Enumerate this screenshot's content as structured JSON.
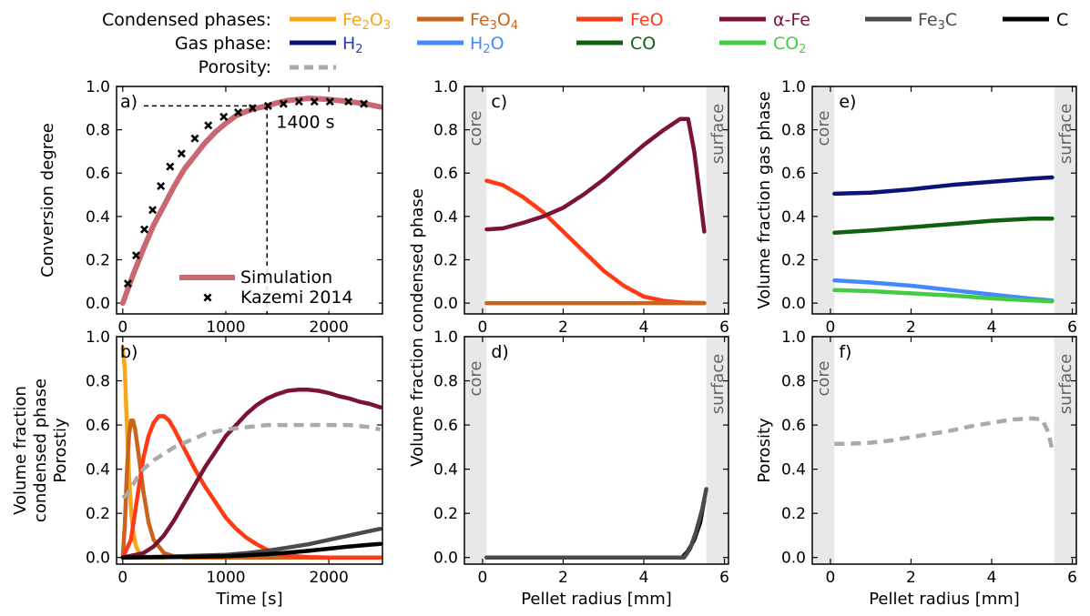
{
  "legend": {
    "condensed_label": "Condensed phases:",
    "gas_label": "Gas phase:",
    "porosity_label": "Porosity:"
  },
  "colors": {
    "Fe2O3": "#f8a51c",
    "Fe3O4": "#c8641e",
    "FeO": "#ff3a14",
    "a-Fe": "#7a1430",
    "Fe3C": "#4a4a4a",
    "C": "#000000",
    "H2": "#0a1478",
    "H2O": "#4488ff",
    "CO": "#106010",
    "CO2": "#44cc44",
    "porosity": "#aaaaaa",
    "simulation": "#c96870",
    "zone": "#e8e8e8"
  },
  "chart_data": [
    {
      "id": "a",
      "type": "line",
      "panel_label": "a)",
      "xlabel": "",
      "ylabel": "Conversion degree",
      "xlim": [
        -60,
        2520
      ],
      "ylim": [
        -0.05,
        1.0
      ],
      "xticks": [
        0,
        1000,
        2000
      ],
      "yticks": [
        0.0,
        0.2,
        0.4,
        0.6,
        0.8,
        1.0
      ],
      "annotation": "1400 s",
      "annotation_x": 1400,
      "annotation_y": 0.91,
      "series": [
        {
          "name": "Simulation",
          "color_key": "simulation",
          "x": [
            0,
            100,
            200,
            300,
            400,
            500,
            600,
            700,
            800,
            900,
            1000,
            1100,
            1200,
            1300,
            1400,
            1500,
            1600,
            1700,
            1800,
            1900,
            2000,
            2100,
            2200,
            2300,
            2400,
            2500
          ],
          "y": [
            0.0,
            0.13,
            0.25,
            0.36,
            0.45,
            0.54,
            0.62,
            0.68,
            0.74,
            0.79,
            0.83,
            0.865,
            0.885,
            0.9,
            0.91,
            0.925,
            0.935,
            0.94,
            0.945,
            0.943,
            0.94,
            0.935,
            0.93,
            0.923,
            0.915,
            0.905
          ]
        }
      ],
      "markers": {
        "name": "Kazemi 2014",
        "x": [
          50,
          130,
          210,
          290,
          370,
          460,
          570,
          700,
          830,
          980,
          1120,
          1260,
          1410,
          1560,
          1710,
          1860,
          2010,
          2190,
          2340
        ],
        "y": [
          0.09,
          0.22,
          0.34,
          0.43,
          0.54,
          0.63,
          0.69,
          0.76,
          0.82,
          0.86,
          0.88,
          0.9,
          0.91,
          0.92,
          0.93,
          0.93,
          0.93,
          0.93,
          0.92
        ]
      }
    },
    {
      "id": "b",
      "type": "line",
      "panel_label": "b)",
      "xlabel": "Time [s]",
      "ylabel": "Volume fraction condensed phase Porostiy",
      "xlim": [
        -60,
        2520
      ],
      "ylim": [
        -0.03,
        1.0
      ],
      "xticks": [
        0,
        1000,
        2000
      ],
      "yticks": [
        0.0,
        0.2,
        0.4,
        0.6,
        0.8,
        1.0
      ],
      "series": [
        {
          "name": "Fe2O3",
          "x": [
            0,
            20,
            40,
            60,
            80,
            100,
            130,
            160,
            200,
            260,
            400
          ],
          "y": [
            0.95,
            0.85,
            0.6,
            0.38,
            0.22,
            0.12,
            0.05,
            0.02,
            0.005,
            0.0,
            0.0
          ]
        },
        {
          "name": "Fe3O4",
          "x": [
            0,
            20,
            40,
            60,
            80,
            100,
            120,
            150,
            200,
            250,
            300,
            400,
            500,
            600,
            800,
            2500
          ],
          "y": [
            0.0,
            0.15,
            0.38,
            0.55,
            0.62,
            0.62,
            0.58,
            0.48,
            0.3,
            0.16,
            0.08,
            0.02,
            0.005,
            0.0,
            0.0,
            0.0
          ]
        },
        {
          "name": "FeO",
          "x": [
            0,
            80,
            150,
            200,
            250,
            300,
            350,
            400,
            450,
            500,
            600,
            700,
            800,
            900,
            1000,
            1100,
            1200,
            1300,
            1400,
            1500,
            1600,
            1700,
            1800,
            2000,
            2500
          ],
          "y": [
            0.0,
            0.08,
            0.3,
            0.45,
            0.55,
            0.61,
            0.64,
            0.64,
            0.62,
            0.58,
            0.49,
            0.4,
            0.32,
            0.25,
            0.18,
            0.13,
            0.09,
            0.06,
            0.035,
            0.02,
            0.01,
            0.005,
            0.002,
            0.0,
            0.0
          ]
        },
        {
          "name": "a-Fe",
          "x": [
            0,
            200,
            300,
            400,
            500,
            600,
            700,
            800,
            900,
            1000,
            1100,
            1200,
            1300,
            1400,
            1500,
            1600,
            1700,
            1800,
            1900,
            2000,
            2100,
            2200,
            2300,
            2400,
            2500
          ],
          "y": [
            0.0,
            0.02,
            0.05,
            0.1,
            0.17,
            0.25,
            0.33,
            0.41,
            0.48,
            0.55,
            0.6,
            0.65,
            0.69,
            0.72,
            0.74,
            0.755,
            0.76,
            0.76,
            0.755,
            0.745,
            0.73,
            0.72,
            0.705,
            0.695,
            0.68
          ]
        },
        {
          "name": "porosity",
          "dashed": true,
          "x": [
            0,
            50,
            100,
            150,
            200,
            300,
            400,
            500,
            600,
            700,
            800,
            900,
            1000,
            1200,
            1400,
            1600,
            1800,
            2000,
            2200,
            2400,
            2500
          ],
          "y": [
            0.27,
            0.29,
            0.33,
            0.37,
            0.4,
            0.44,
            0.47,
            0.5,
            0.52,
            0.54,
            0.56,
            0.57,
            0.58,
            0.59,
            0.6,
            0.6,
            0.6,
            0.6,
            0.6,
            0.59,
            0.58
          ]
        },
        {
          "name": "Fe3C",
          "x": [
            0,
            500,
            1000,
            1200,
            1400,
            1600,
            1800,
            2000,
            2200,
            2400,
            2500
          ],
          "y": [
            0.0,
            0.005,
            0.012,
            0.02,
            0.03,
            0.045,
            0.06,
            0.08,
            0.1,
            0.12,
            0.13
          ]
        },
        {
          "name": "C",
          "x": [
            0,
            500,
            1000,
            1200,
            1400,
            1600,
            1800,
            2000,
            2200,
            2400,
            2500
          ],
          "y": [
            0.0,
            0.002,
            0.006,
            0.01,
            0.015,
            0.022,
            0.03,
            0.04,
            0.05,
            0.058,
            0.062
          ]
        }
      ]
    },
    {
      "id": "c",
      "type": "line",
      "panel_label": "c)",
      "xlabel": "",
      "ylabel": "Volume fraction condensed phase",
      "xlim": [
        -0.45,
        6.1
      ],
      "ylim": [
        -0.05,
        1.0
      ],
      "xticks": [
        0,
        2,
        4,
        6
      ],
      "yticks": [
        0.0,
        0.2,
        0.4,
        0.6,
        0.8,
        1.0
      ],
      "zones": {
        "core": "core",
        "surface": "surface",
        "core_end": 0.1,
        "surface_start": 5.55
      },
      "series": [
        {
          "name": "FeO",
          "x": [
            0.1,
            0.5,
            1.0,
            1.5,
            2.0,
            2.5,
            3.0,
            3.5,
            4.0,
            4.5,
            5.0,
            5.5
          ],
          "y": [
            0.565,
            0.545,
            0.49,
            0.42,
            0.33,
            0.24,
            0.15,
            0.08,
            0.03,
            0.01,
            0.002,
            0.0
          ]
        },
        {
          "name": "Fe3O4",
          "x": [
            0.1,
            5.5
          ],
          "y": [
            0.0,
            0.0
          ]
        },
        {
          "name": "a-Fe",
          "x": [
            0.1,
            0.5,
            1.0,
            1.5,
            2.0,
            2.5,
            3.0,
            3.5,
            4.0,
            4.5,
            4.9,
            5.1,
            5.25,
            5.4,
            5.5
          ],
          "y": [
            0.34,
            0.345,
            0.37,
            0.4,
            0.44,
            0.5,
            0.57,
            0.65,
            0.73,
            0.8,
            0.85,
            0.85,
            0.7,
            0.48,
            0.33
          ]
        }
      ]
    },
    {
      "id": "d",
      "type": "line",
      "panel_label": "d)",
      "xlabel": "Pellet radius [mm]",
      "ylabel": "",
      "xlim": [
        -0.45,
        6.1
      ],
      "ylim": [
        -0.03,
        1.0
      ],
      "xticks": [
        0,
        2,
        4,
        6
      ],
      "yticks": [
        0.0,
        0.2,
        0.4,
        0.6,
        0.8,
        1.0
      ],
      "zones": {
        "core": "core",
        "surface": "surface",
        "core_end": 0.1,
        "surface_start": 5.55
      },
      "series": [
        {
          "name": "C",
          "x": [
            0.1,
            4.95,
            5.1,
            5.25,
            5.4,
            5.5
          ],
          "y": [
            0.0,
            0.0,
            0.03,
            0.08,
            0.16,
            0.26
          ]
        },
        {
          "name": "Fe3C",
          "x": [
            0.1,
            5.0,
            5.15,
            5.3,
            5.45,
            5.55
          ],
          "y": [
            0.0,
            0.0,
            0.04,
            0.12,
            0.22,
            0.31
          ]
        }
      ]
    },
    {
      "id": "e",
      "type": "line",
      "panel_label": "e)",
      "xlabel": "",
      "ylabel": "Volume fraction gas phase",
      "xlim": [
        -0.45,
        6.1
      ],
      "ylim": [
        -0.05,
        1.0
      ],
      "xticks": [
        0,
        2,
        4,
        6
      ],
      "yticks": [
        0.0,
        0.2,
        0.4,
        0.6,
        0.8,
        1.0
      ],
      "zones": {
        "core": "core",
        "surface": "surface",
        "core_end": 0.1,
        "surface_start": 5.55
      },
      "series": [
        {
          "name": "H2",
          "x": [
            0.1,
            1.0,
            2.0,
            3.0,
            4.0,
            5.0,
            5.5
          ],
          "y": [
            0.505,
            0.51,
            0.525,
            0.545,
            0.56,
            0.575,
            0.58
          ]
        },
        {
          "name": "CO",
          "x": [
            0.1,
            1.0,
            2.0,
            3.0,
            4.0,
            5.0,
            5.5
          ],
          "y": [
            0.325,
            0.335,
            0.35,
            0.365,
            0.38,
            0.39,
            0.39
          ]
        },
        {
          "name": "H2O",
          "x": [
            0.1,
            1.0,
            2.0,
            3.0,
            4.0,
            5.0,
            5.5
          ],
          "y": [
            0.105,
            0.095,
            0.08,
            0.06,
            0.04,
            0.02,
            0.012
          ]
        },
        {
          "name": "CO2",
          "x": [
            0.1,
            1.0,
            2.0,
            3.0,
            4.0,
            5.0,
            5.5
          ],
          "y": [
            0.06,
            0.055,
            0.045,
            0.035,
            0.022,
            0.012,
            0.008
          ]
        }
      ]
    },
    {
      "id": "f",
      "type": "line",
      "panel_label": "f)",
      "xlabel": "Pellet radius [mm]",
      "ylabel": "Porosity",
      "xlim": [
        -0.45,
        6.1
      ],
      "ylim": [
        -0.03,
        1.0
      ],
      "xticks": [
        0,
        2,
        4,
        6
      ],
      "yticks": [
        0.0,
        0.2,
        0.4,
        0.6,
        0.8,
        1.0
      ],
      "zones": {
        "core": "core",
        "surface": "surface",
        "core_end": 0.1,
        "surface_start": 5.55
      },
      "series": [
        {
          "name": "porosity",
          "dashed": true,
          "x": [
            0.1,
            0.5,
            1.0,
            1.5,
            2.0,
            2.5,
            3.0,
            3.5,
            4.0,
            4.5,
            5.0,
            5.25,
            5.4,
            5.5
          ],
          "y": [
            0.515,
            0.515,
            0.52,
            0.53,
            0.545,
            0.56,
            0.575,
            0.595,
            0.61,
            0.625,
            0.63,
            0.625,
            0.57,
            0.49
          ]
        }
      ]
    }
  ]
}
